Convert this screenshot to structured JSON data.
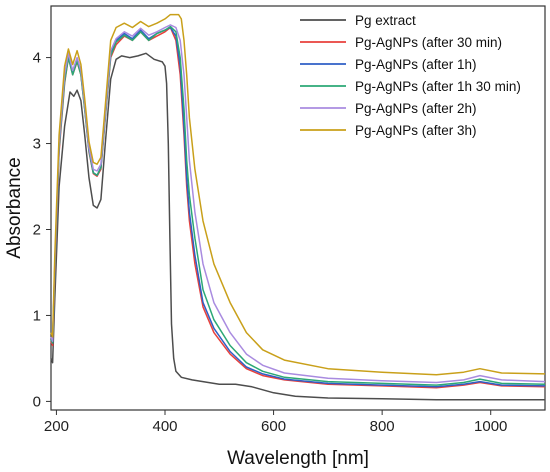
{
  "chart_data": {
    "type": "line",
    "title": "",
    "xlabel": "Wavelength [nm]",
    "ylabel": "Absorbance",
    "xlim": [
      190,
      1100
    ],
    "ylim": [
      -0.1,
      4.6
    ],
    "x_ticks": [
      200,
      400,
      600,
      800,
      1000
    ],
    "y_ticks": [
      0,
      1,
      2,
      3,
      4
    ],
    "grid": false,
    "legend": "top-right",
    "series": [
      {
        "name": "Pg extract",
        "color": "#4d4d4d",
        "points": [
          [
            190,
            0.5
          ],
          [
            193,
            0.45
          ],
          [
            197,
            1.2
          ],
          [
            205,
            2.5
          ],
          [
            215,
            3.2
          ],
          [
            225,
            3.6
          ],
          [
            232,
            3.55
          ],
          [
            238,
            3.62
          ],
          [
            245,
            3.5
          ],
          [
            252,
            3.1
          ],
          [
            260,
            2.6
          ],
          [
            268,
            2.28
          ],
          [
            275,
            2.25
          ],
          [
            282,
            2.35
          ],
          [
            290,
            3.0
          ],
          [
            300,
            3.75
          ],
          [
            310,
            3.98
          ],
          [
            320,
            4.02
          ],
          [
            335,
            4.0
          ],
          [
            350,
            4.02
          ],
          [
            365,
            4.05
          ],
          [
            380,
            3.98
          ],
          [
            395,
            3.95
          ],
          [
            400,
            3.9
          ],
          [
            403,
            3.7
          ],
          [
            406,
            3.0
          ],
          [
            409,
            1.9
          ],
          [
            412,
            0.9
          ],
          [
            416,
            0.5
          ],
          [
            420,
            0.35
          ],
          [
            430,
            0.28
          ],
          [
            450,
            0.25
          ],
          [
            480,
            0.22
          ],
          [
            500,
            0.2
          ],
          [
            530,
            0.2
          ],
          [
            560,
            0.17
          ],
          [
            600,
            0.1
          ],
          [
            640,
            0.06
          ],
          [
            700,
            0.04
          ],
          [
            800,
            0.03
          ],
          [
            900,
            0.02
          ],
          [
            1000,
            0.02
          ],
          [
            1100,
            0.02
          ]
        ]
      },
      {
        "name": "Pg-AgNPs (after 30 min)",
        "color": "#e8413c",
        "points": [
          [
            190,
            0.7
          ],
          [
            193,
            0.65
          ],
          [
            197,
            1.5
          ],
          [
            205,
            2.9
          ],
          [
            215,
            3.7
          ],
          [
            222,
            4.0
          ],
          [
            230,
            3.8
          ],
          [
            238,
            3.95
          ],
          [
            245,
            3.8
          ],
          [
            252,
            3.4
          ],
          [
            260,
            2.9
          ],
          [
            268,
            2.65
          ],
          [
            275,
            2.62
          ],
          [
            282,
            2.7
          ],
          [
            290,
            3.3
          ],
          [
            300,
            4.0
          ],
          [
            310,
            4.15
          ],
          [
            325,
            4.25
          ],
          [
            340,
            4.2
          ],
          [
            355,
            4.3
          ],
          [
            370,
            4.2
          ],
          [
            385,
            4.25
          ],
          [
            400,
            4.3
          ],
          [
            410,
            4.35
          ],
          [
            420,
            4.2
          ],
          [
            428,
            3.8
          ],
          [
            435,
            3.1
          ],
          [
            440,
            2.5
          ],
          [
            445,
            2.1
          ],
          [
            455,
            1.6
          ],
          [
            470,
            1.1
          ],
          [
            490,
            0.8
          ],
          [
            520,
            0.55
          ],
          [
            550,
            0.38
          ],
          [
            580,
            0.3
          ],
          [
            620,
            0.25
          ],
          [
            700,
            0.2
          ],
          [
            800,
            0.18
          ],
          [
            900,
            0.16
          ],
          [
            950,
            0.19
          ],
          [
            980,
            0.22
          ],
          [
            1020,
            0.18
          ],
          [
            1100,
            0.17
          ]
        ]
      },
      {
        "name": "Pg-AgNPs (after 1h)",
        "color": "#2f5fc6",
        "points": [
          [
            190,
            0.72
          ],
          [
            193,
            0.68
          ],
          [
            197,
            1.55
          ],
          [
            205,
            2.95
          ],
          [
            215,
            3.75
          ],
          [
            222,
            4.02
          ],
          [
            230,
            3.82
          ],
          [
            238,
            3.98
          ],
          [
            245,
            3.82
          ],
          [
            252,
            3.42
          ],
          [
            260,
            2.92
          ],
          [
            268,
            2.66
          ],
          [
            275,
            2.63
          ],
          [
            282,
            2.72
          ],
          [
            290,
            3.32
          ],
          [
            300,
            4.05
          ],
          [
            310,
            4.2
          ],
          [
            325,
            4.28
          ],
          [
            340,
            4.22
          ],
          [
            355,
            4.32
          ],
          [
            370,
            4.22
          ],
          [
            385,
            4.28
          ],
          [
            400,
            4.32
          ],
          [
            410,
            4.35
          ],
          [
            420,
            4.25
          ],
          [
            428,
            3.9
          ],
          [
            435,
            3.2
          ],
          [
            440,
            2.6
          ],
          [
            445,
            2.2
          ],
          [
            455,
            1.7
          ],
          [
            470,
            1.15
          ],
          [
            490,
            0.85
          ],
          [
            520,
            0.58
          ],
          [
            550,
            0.4
          ],
          [
            580,
            0.32
          ],
          [
            620,
            0.26
          ],
          [
            700,
            0.21
          ],
          [
            800,
            0.19
          ],
          [
            900,
            0.17
          ],
          [
            950,
            0.2
          ],
          [
            980,
            0.23
          ],
          [
            1020,
            0.19
          ],
          [
            1100,
            0.18
          ]
        ]
      },
      {
        "name": "Pg-AgNPs (after 1h 30 min)",
        "color": "#2ca876",
        "points": [
          [
            190,
            0.72
          ],
          [
            193,
            0.68
          ],
          [
            197,
            1.55
          ],
          [
            205,
            2.95
          ],
          [
            215,
            3.72
          ],
          [
            222,
            4.0
          ],
          [
            230,
            3.8
          ],
          [
            238,
            3.96
          ],
          [
            245,
            3.8
          ],
          [
            252,
            3.4
          ],
          [
            260,
            2.92
          ],
          [
            268,
            2.66
          ],
          [
            275,
            2.63
          ],
          [
            282,
            2.72
          ],
          [
            290,
            3.32
          ],
          [
            300,
            4.02
          ],
          [
            310,
            4.18
          ],
          [
            325,
            4.26
          ],
          [
            340,
            4.2
          ],
          [
            355,
            4.3
          ],
          [
            370,
            4.2
          ],
          [
            385,
            4.28
          ],
          [
            400,
            4.32
          ],
          [
            410,
            4.36
          ],
          [
            420,
            4.3
          ],
          [
            428,
            4.0
          ],
          [
            435,
            3.4
          ],
          [
            440,
            2.8
          ],
          [
            445,
            2.4
          ],
          [
            455,
            1.9
          ],
          [
            470,
            1.3
          ],
          [
            490,
            0.95
          ],
          [
            520,
            0.65
          ],
          [
            550,
            0.45
          ],
          [
            580,
            0.35
          ],
          [
            620,
            0.28
          ],
          [
            700,
            0.23
          ],
          [
            800,
            0.21
          ],
          [
            900,
            0.19
          ],
          [
            950,
            0.22
          ],
          [
            980,
            0.26
          ],
          [
            1020,
            0.21
          ],
          [
            1100,
            0.2
          ]
        ]
      },
      {
        "name": "Pg-AgNPs (after 2h)",
        "color": "#a98be0",
        "points": [
          [
            190,
            0.75
          ],
          [
            193,
            0.7
          ],
          [
            197,
            1.6
          ],
          [
            205,
            3.0
          ],
          [
            215,
            3.8
          ],
          [
            222,
            4.05
          ],
          [
            230,
            3.85
          ],
          [
            238,
            4.0
          ],
          [
            245,
            3.85
          ],
          [
            252,
            3.45
          ],
          [
            260,
            2.95
          ],
          [
            268,
            2.7
          ],
          [
            275,
            2.68
          ],
          [
            282,
            2.76
          ],
          [
            290,
            3.36
          ],
          [
            300,
            4.08
          ],
          [
            310,
            4.22
          ],
          [
            325,
            4.3
          ],
          [
            340,
            4.25
          ],
          [
            355,
            4.34
          ],
          [
            370,
            4.26
          ],
          [
            385,
            4.3
          ],
          [
            400,
            4.35
          ],
          [
            410,
            4.38
          ],
          [
            420,
            4.35
          ],
          [
            428,
            4.2
          ],
          [
            435,
            3.8
          ],
          [
            440,
            3.3
          ],
          [
            445,
            2.8
          ],
          [
            455,
            2.2
          ],
          [
            470,
            1.6
          ],
          [
            490,
            1.15
          ],
          [
            520,
            0.8
          ],
          [
            550,
            0.55
          ],
          [
            580,
            0.42
          ],
          [
            620,
            0.33
          ],
          [
            700,
            0.27
          ],
          [
            800,
            0.24
          ],
          [
            900,
            0.22
          ],
          [
            950,
            0.25
          ],
          [
            980,
            0.3
          ],
          [
            1020,
            0.25
          ],
          [
            1100,
            0.23
          ]
        ]
      },
      {
        "name": "Pg-AgNPs (after 3h)",
        "color": "#c9a01a",
        "points": [
          [
            190,
            0.8
          ],
          [
            193,
            0.75
          ],
          [
            197,
            1.7
          ],
          [
            205,
            3.1
          ],
          [
            215,
            3.9
          ],
          [
            222,
            4.1
          ],
          [
            230,
            3.92
          ],
          [
            238,
            4.08
          ],
          [
            245,
            3.92
          ],
          [
            252,
            3.52
          ],
          [
            260,
            3.02
          ],
          [
            268,
            2.78
          ],
          [
            275,
            2.76
          ],
          [
            282,
            2.84
          ],
          [
            290,
            3.44
          ],
          [
            300,
            4.2
          ],
          [
            310,
            4.35
          ],
          [
            325,
            4.4
          ],
          [
            340,
            4.35
          ],
          [
            355,
            4.42
          ],
          [
            370,
            4.36
          ],
          [
            385,
            4.4
          ],
          [
            400,
            4.45
          ],
          [
            410,
            4.5
          ],
          [
            420,
            4.5
          ],
          [
            425,
            4.5
          ],
          [
            430,
            4.45
          ],
          [
            435,
            4.2
          ],
          [
            440,
            3.8
          ],
          [
            445,
            3.3
          ],
          [
            455,
            2.7
          ],
          [
            470,
            2.1
          ],
          [
            490,
            1.6
          ],
          [
            520,
            1.15
          ],
          [
            550,
            0.8
          ],
          [
            580,
            0.6
          ],
          [
            620,
            0.48
          ],
          [
            700,
            0.38
          ],
          [
            800,
            0.34
          ],
          [
            900,
            0.31
          ],
          [
            950,
            0.34
          ],
          [
            980,
            0.38
          ],
          [
            1020,
            0.33
          ],
          [
            1100,
            0.32
          ]
        ]
      }
    ]
  }
}
